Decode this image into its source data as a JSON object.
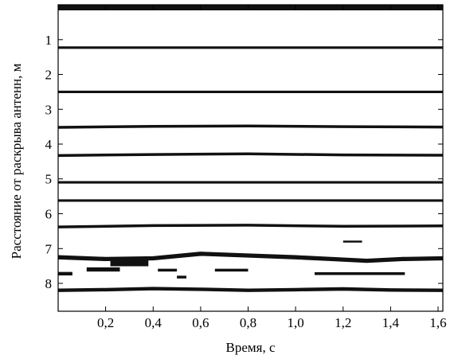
{
  "chart_data": {
    "type": "heatmap",
    "title": "",
    "xlabel": "Время, с",
    "ylabel": "Расстояние от раскрыва антенн, м",
    "xlim": [
      0.0,
      1.62
    ],
    "ylim": [
      8.8,
      0.0
    ],
    "x_ticks": [
      0.2,
      0.4,
      0.6,
      0.8,
      1.0,
      1.2,
      1.4,
      1.6
    ],
    "x_tick_labels": [
      "0,2",
      "0,4",
      "0,6",
      "0,8",
      "1,0",
      "1,2",
      "1,4",
      "1,6"
    ],
    "y_ticks": [
      1,
      2,
      3,
      4,
      5,
      6,
      7,
      8
    ],
    "y_tick_labels": [
      "1",
      "2",
      "3",
      "4",
      "5",
      "6",
      "7",
      "8"
    ],
    "grid": false,
    "colors": {
      "band": "#111111",
      "background": "#ffffff"
    },
    "bands": [
      {
        "name": "",
        "x": [
          0.0,
          1.62
        ],
        "y": [
          0.05,
          0.05
        ],
        "thickness_m": 0.22
      },
      {
        "name": "",
        "x": [
          0.0,
          1.62
        ],
        "y": [
          1.23,
          1.23
        ],
        "thickness_m": 0.07
      },
      {
        "name": "",
        "x": [
          0.0,
          1.62
        ],
        "y": [
          2.5,
          2.5
        ],
        "thickness_m": 0.07
      },
      {
        "name": "",
        "x": [
          0.0,
          0.4,
          0.8,
          1.2,
          1.62
        ],
        "y": [
          3.52,
          3.49,
          3.48,
          3.5,
          3.51
        ],
        "thickness_m": 0.08
      },
      {
        "name": "",
        "x": [
          0.0,
          0.4,
          0.8,
          1.2,
          1.62
        ],
        "y": [
          4.33,
          4.3,
          4.28,
          4.31,
          4.32
        ],
        "thickness_m": 0.08
      },
      {
        "name": "",
        "x": [
          0.0,
          1.62
        ],
        "y": [
          5.1,
          5.1
        ],
        "thickness_m": 0.07
      },
      {
        "name": "",
        "x": [
          0.0,
          1.62
        ],
        "y": [
          5.62,
          5.62
        ],
        "thickness_m": 0.07
      },
      {
        "name": "",
        "x": [
          0.0,
          0.4,
          0.8,
          1.2,
          1.62
        ],
        "y": [
          6.38,
          6.34,
          6.33,
          6.36,
          6.35
        ],
        "thickness_m": 0.08
      },
      {
        "name": "",
        "x": [
          0.0,
          0.2,
          0.4,
          0.6,
          0.8,
          1.0,
          1.15,
          1.3,
          1.45,
          1.62
        ],
        "y": [
          7.25,
          7.3,
          7.28,
          7.15,
          7.2,
          7.25,
          7.3,
          7.35,
          7.3,
          7.28
        ],
        "thickness_m": 0.12
      },
      {
        "name": "",
        "x": [
          0.0,
          0.2,
          0.4,
          0.6,
          0.8,
          1.0,
          1.2,
          1.4,
          1.62
        ],
        "y": [
          8.2,
          8.18,
          8.15,
          8.17,
          8.2,
          8.18,
          8.16,
          8.19,
          8.2
        ],
        "thickness_m": 0.1
      }
    ],
    "blobs": [
      {
        "x": [
          0.12,
          0.26
        ],
        "y": [
          7.6,
          7.6
        ],
        "thickness_m": 0.12
      },
      {
        "x": [
          0.22,
          0.38
        ],
        "y": [
          7.4,
          7.4
        ],
        "thickness_m": 0.22
      },
      {
        "x": [
          0.0,
          0.06
        ],
        "y": [
          7.72,
          7.72
        ],
        "thickness_m": 0.1
      },
      {
        "x": [
          0.42,
          0.5
        ],
        "y": [
          7.62,
          7.62
        ],
        "thickness_m": 0.08
      },
      {
        "x": [
          0.5,
          0.54
        ],
        "y": [
          7.82,
          7.82
        ],
        "thickness_m": 0.08
      },
      {
        "x": [
          0.66,
          0.8
        ],
        "y": [
          7.62,
          7.62
        ],
        "thickness_m": 0.08
      },
      {
        "x": [
          1.2,
          1.28
        ],
        "y": [
          6.8,
          6.8
        ],
        "thickness_m": 0.06
      },
      {
        "x": [
          1.08,
          1.46
        ],
        "y": [
          7.72,
          7.72
        ],
        "thickness_m": 0.08
      }
    ]
  }
}
